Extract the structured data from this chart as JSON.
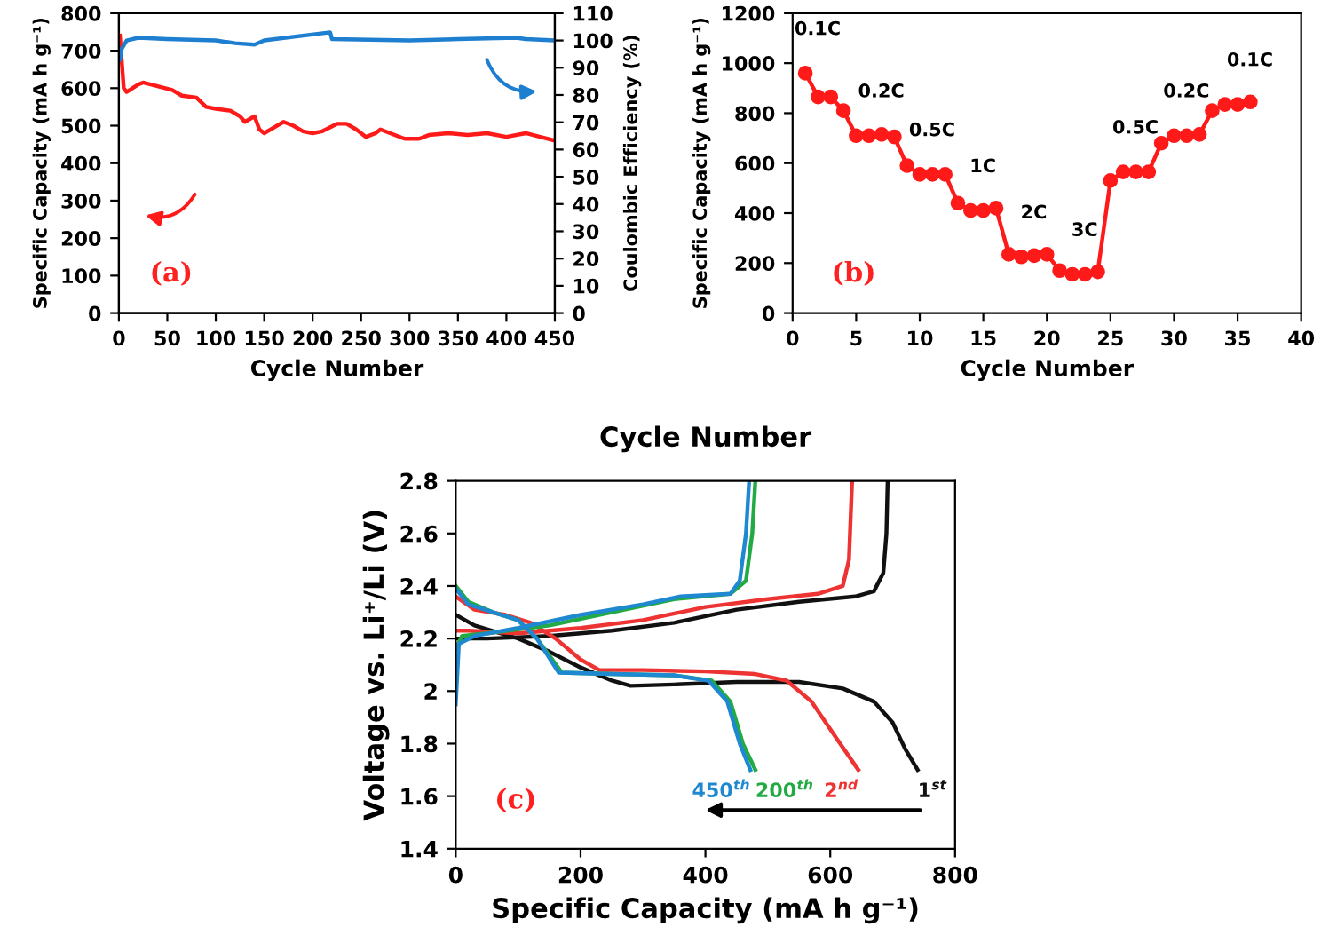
{
  "chart_data": [
    {
      "type": "line",
      "xlabel": "Cycle Number",
      "ylabel": "Specific Capacity (mA h g⁻¹)",
      "y2label": "Coulombic Efficiency (%)",
      "annotations": [
        "(a)"
      ],
      "xlim": [
        0,
        450
      ],
      "xticks": [
        0,
        50,
        100,
        150,
        200,
        250,
        300,
        350,
        400,
        450
      ],
      "ylim": [
        0,
        800
      ],
      "yticks": [
        0,
        100,
        200,
        300,
        400,
        500,
        600,
        700,
        800
      ],
      "y2lim": [
        0,
        110
      ],
      "y2ticks": [
        0,
        10,
        20,
        30,
        40,
        50,
        60,
        70,
        80,
        90,
        100,
        110
      ],
      "grid": false,
      "marker": "none",
      "line_style": "solid",
      "series": [
        {
          "color": "#ff1a1a",
          "x": [
            1,
            5,
            8,
            20,
            25,
            40,
            55,
            65,
            80,
            90,
            100,
            115,
            125,
            130,
            140,
            145,
            150,
            160,
            170,
            180,
            190,
            200,
            210,
            225,
            235,
            245,
            255,
            265,
            270,
            280,
            295,
            310,
            320,
            340,
            360,
            380,
            400,
            420,
            435,
            450
          ],
          "values": [
            740,
            600,
            590,
            610,
            615,
            605,
            595,
            580,
            575,
            550,
            545,
            540,
            525,
            510,
            525,
            490,
            480,
            495,
            510,
            500,
            485,
            480,
            485,
            505,
            505,
            490,
            470,
            480,
            490,
            480,
            465,
            465,
            475,
            480,
            475,
            480,
            470,
            480,
            470,
            460
          ]
        },
        {
          "color": "#1e7fd0",
          "axis": "y2",
          "x": [
            1,
            3,
            8,
            20,
            50,
            100,
            120,
            140,
            150,
            218,
            220,
            300,
            350,
            410,
            420,
            450
          ],
          "values": [
            93,
            97,
            100,
            101,
            100.5,
            100,
            99,
            98.5,
            100,
            103,
            100.5,
            100,
            100.5,
            101,
            100.5,
            100
          ]
        }
      ]
    },
    {
      "type": "line",
      "xlabel": "Cycle Number",
      "ylabel": "Specific Capacity (mA h g⁻¹)",
      "xlim": [
        0,
        40
      ],
      "xticks": [
        0,
        5,
        10,
        15,
        20,
        25,
        30,
        35,
        40
      ],
      "ylim": [
        0,
        1200
      ],
      "yticks": [
        0,
        200,
        400,
        600,
        800,
        1000,
        1200
      ],
      "grid": false,
      "marker": "circle",
      "line_style": "solid",
      "annotations": [
        "(b)",
        {
          "text": "0.1C",
          "x": 1,
          "y": 960
        },
        {
          "text": "0.2C",
          "x": 6,
          "y": 710
        },
        {
          "text": "0.5C",
          "x": 10,
          "y": 555
        },
        {
          "text": "1C",
          "x": 14,
          "y": 410
        },
        {
          "text": "2C",
          "x": 18,
          "y": 225
        },
        {
          "text": "3C",
          "x": 22,
          "y": 155
        },
        {
          "text": "0.5C",
          "x": 26,
          "y": 565
        },
        {
          "text": "0.2C",
          "x": 30,
          "y": 710
        },
        {
          "text": "0.1C",
          "x": 35,
          "y": 835
        }
      ],
      "series": [
        {
          "color": "#ff1a1a",
          "x": [
            1,
            2,
            3,
            4,
            5,
            6,
            7,
            8,
            9,
            10,
            11,
            12,
            13,
            14,
            15,
            16,
            17,
            18,
            19,
            20,
            21,
            22,
            23,
            24,
            25,
            26,
            27,
            28,
            29,
            30,
            31,
            32,
            33,
            34,
            35,
            36
          ],
          "values": [
            960,
            865,
            865,
            810,
            710,
            710,
            715,
            705,
            590,
            555,
            555,
            555,
            440,
            410,
            410,
            420,
            235,
            225,
            230,
            235,
            170,
            155,
            155,
            165,
            530,
            565,
            565,
            565,
            680,
            710,
            710,
            715,
            810,
            835,
            835,
            845
          ]
        }
      ]
    },
    {
      "type": "line",
      "title": "Cycle Number",
      "xlabel": "Specific Capacity (mA h g⁻¹)",
      "ylabel": "Voltage vs. Li⁺/Li (V)",
      "annotations": [
        "(c)"
      ],
      "xlim": [
        0,
        800
      ],
      "xticks": [
        0,
        200,
        400,
        600,
        800
      ],
      "ylim": [
        1.4,
        2.8
      ],
      "yticks": [
        1.4,
        1.6,
        1.8,
        2,
        2.2,
        2.4,
        2.6,
        2.8
      ],
      "grid": false,
      "marker": "none",
      "line_style": "solid",
      "series": [
        {
          "name": "1$^{st}$",
          "color": "#111111",
          "x": [
            0,
            30,
            100,
            150,
            200,
            250,
            280,
            350,
            450,
            550,
            620,
            670,
            700,
            720,
            740
          ],
          "values": [
            2.29,
            2.25,
            2.2,
            2.15,
            2.09,
            2.04,
            2.02,
            2.025,
            2.035,
            2.035,
            2.01,
            1.96,
            1.88,
            1.78,
            1.7
          ]
        },
        {
          "color": "#111111",
          "x": [
            0,
            50,
            150,
            250,
            350,
            450,
            550,
            640,
            670,
            685,
            690,
            692
          ],
          "values": [
            2.2,
            2.2,
            2.21,
            2.23,
            2.26,
            2.31,
            2.34,
            2.36,
            2.38,
            2.45,
            2.6,
            2.8
          ]
        },
        {
          "name": "2$^{nd}$",
          "color": "#ee3333",
          "x": [
            0,
            30,
            80,
            120,
            160,
            200,
            230,
            300,
            400,
            480,
            530,
            570,
            610,
            645
          ],
          "values": [
            2.36,
            2.31,
            2.29,
            2.26,
            2.2,
            2.12,
            2.08,
            2.08,
            2.075,
            2.065,
            2.04,
            1.96,
            1.82,
            1.7
          ]
        },
        {
          "color": "#ee3333",
          "x": [
            0,
            20,
            100,
            200,
            300,
            400,
            500,
            580,
            620,
            630,
            635
          ],
          "values": [
            2.23,
            2.23,
            2.22,
            2.24,
            2.27,
            2.32,
            2.35,
            2.37,
            2.4,
            2.5,
            2.8
          ]
        },
        {
          "name": "200$^{th}$",
          "color": "#22aa44",
          "x": [
            0,
            20,
            60,
            100,
            130,
            170,
            250,
            350,
            410,
            440,
            460,
            480
          ],
          "values": [
            2.4,
            2.34,
            2.3,
            2.27,
            2.2,
            2.07,
            2.065,
            2.06,
            2.04,
            1.96,
            1.8,
            1.7
          ]
        },
        {
          "color": "#22aa44",
          "x": [
            0,
            10,
            50,
            150,
            250,
            350,
            440,
            465,
            475,
            480
          ],
          "values": [
            2.16,
            2.21,
            2.22,
            2.25,
            2.3,
            2.35,
            2.37,
            2.42,
            2.6,
            2.8
          ]
        },
        {
          "name": "450$^{th}$",
          "color": "#1e88d0",
          "x": [
            0,
            20,
            60,
            100,
            130,
            165,
            250,
            350,
            405,
            435,
            455,
            472
          ],
          "values": [
            2.39,
            2.33,
            2.3,
            2.27,
            2.2,
            2.07,
            2.065,
            2.06,
            2.04,
            1.96,
            1.8,
            1.7
          ]
        },
        {
          "color": "#1e88d0",
          "x": [
            0,
            5,
            30,
            100,
            200,
            300,
            360,
            440,
            455,
            465,
            470
          ],
          "values": [
            1.95,
            2.18,
            2.21,
            2.24,
            2.29,
            2.33,
            2.36,
            2.37,
            2.42,
            2.6,
            2.8
          ]
        }
      ]
    }
  ]
}
